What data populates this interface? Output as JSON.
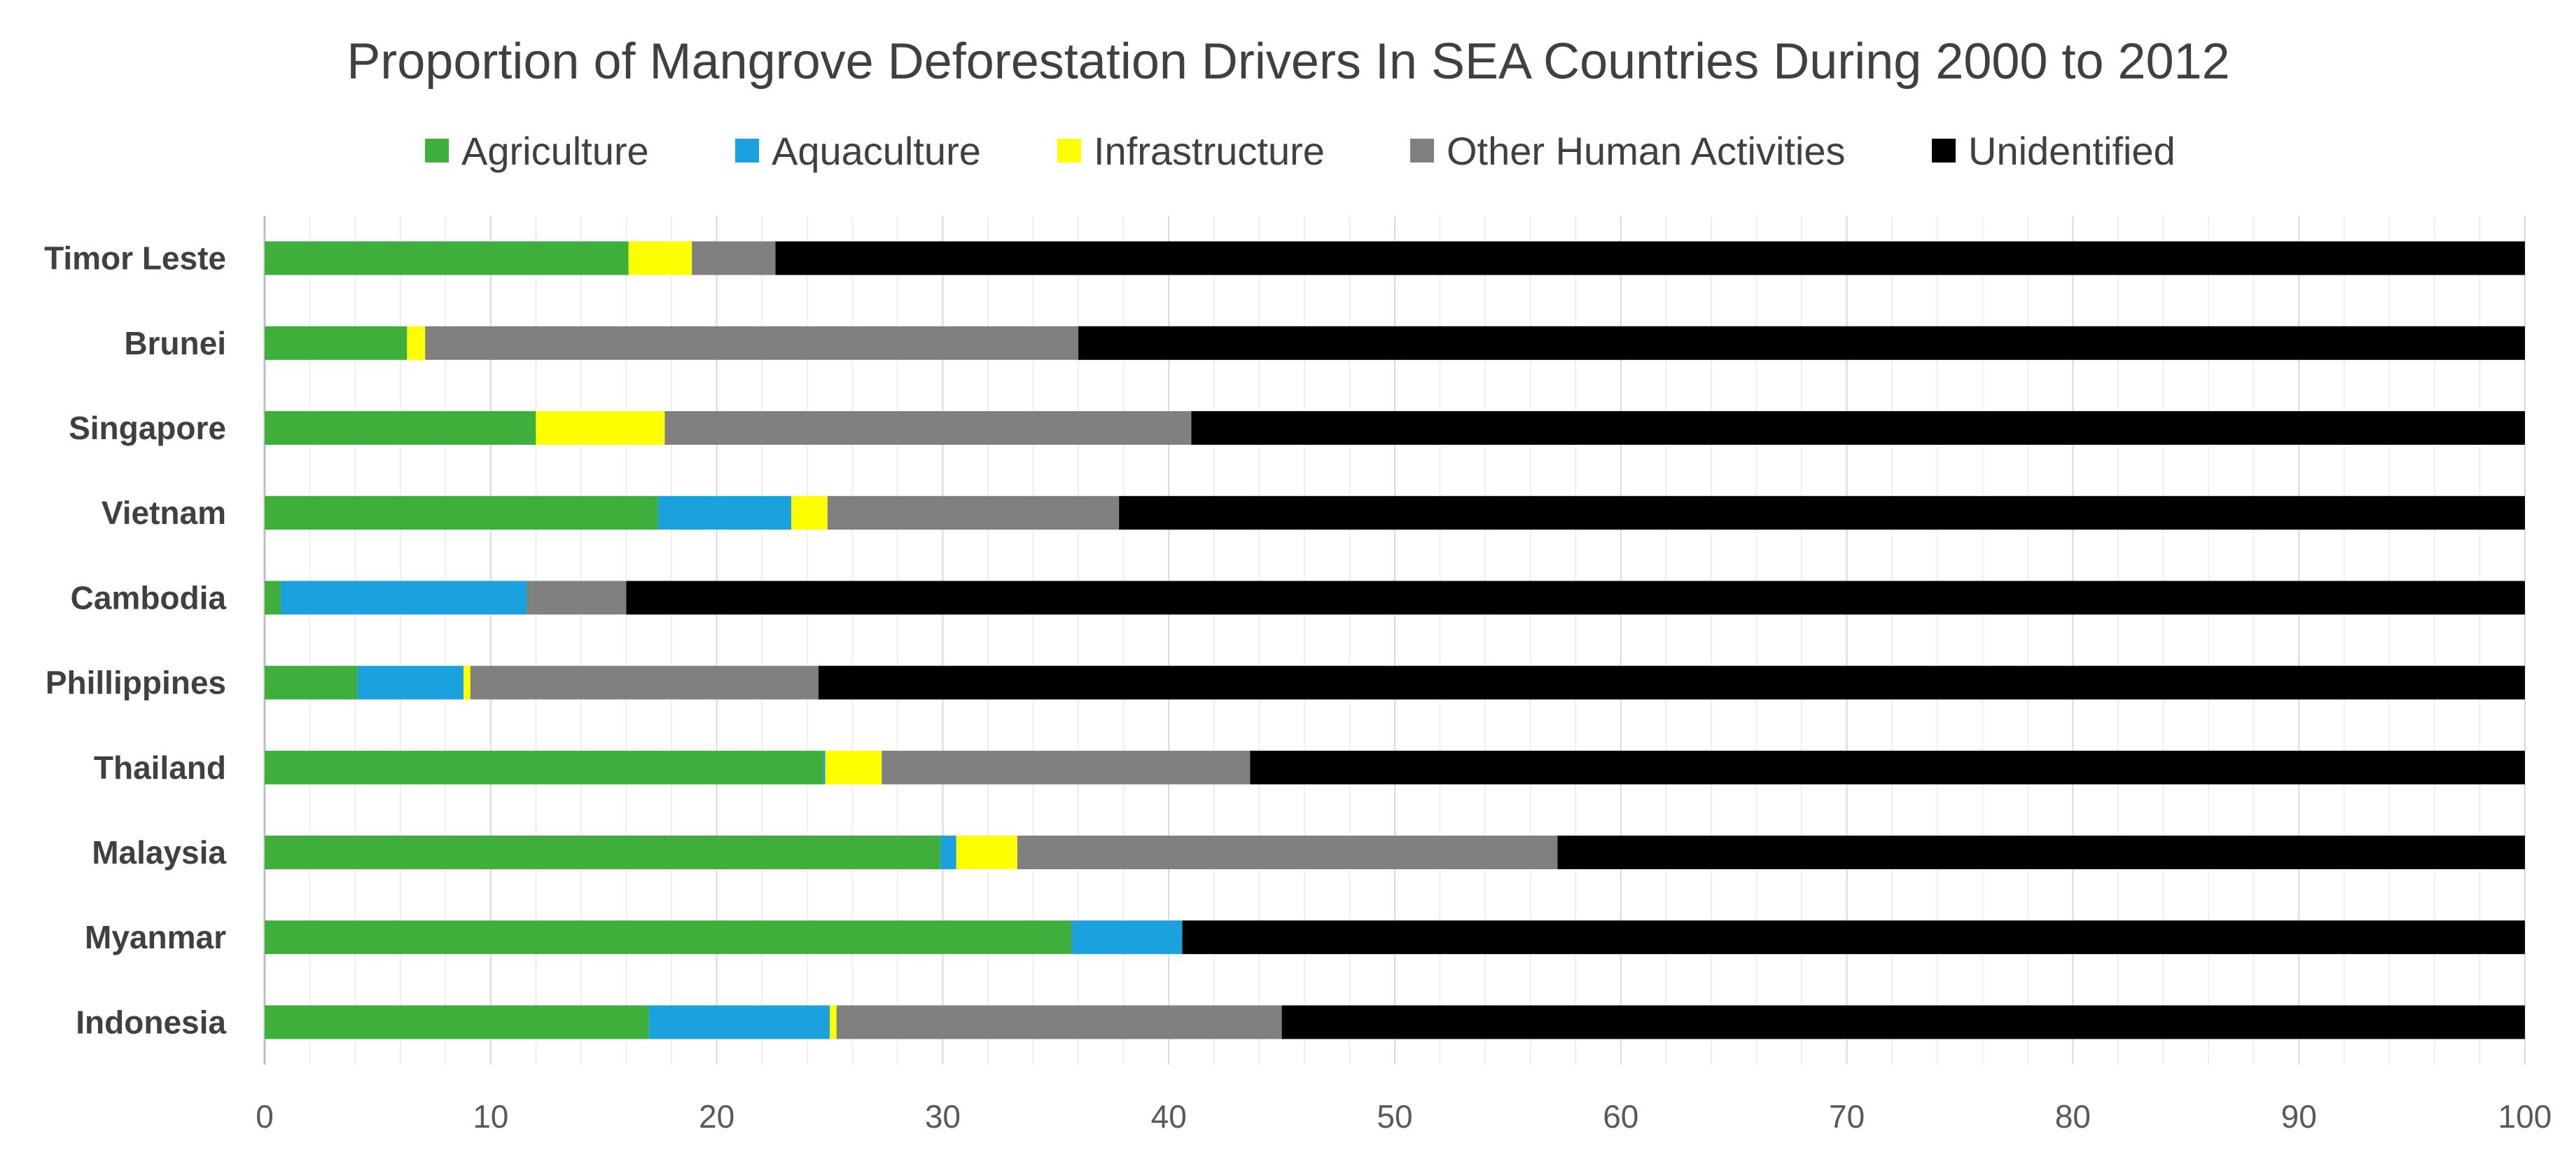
{
  "chart_data": {
    "type": "bar",
    "orientation": "horizontal",
    "stacked": true,
    "title": "Proportion of Mangrove Deforestation Drivers In SEA Countries During 2000 to 2012",
    "xlabel": "",
    "ylabel": "",
    "xlim": [
      0,
      100
    ],
    "xticks": [
      "0",
      "10",
      "20",
      "30",
      "40",
      "50",
      "60",
      "70",
      "80",
      "90",
      "100"
    ],
    "grid": true,
    "legend_position": "top",
    "categories": [
      "Timor Leste",
      "Brunei",
      "Singapore",
      "Vietnam",
      "Cambodia",
      "Phillippines",
      "Thailand",
      "Malaysia",
      "Myanmar",
      "Indonesia"
    ],
    "series": [
      {
        "name": "Agriculture",
        "color": "#3daf3a",
        "values": [
          16.1,
          6.3,
          12.0,
          17.4,
          0.7,
          4.1,
          24.7,
          29.9,
          35.7,
          17.0
        ]
      },
      {
        "name": "Aquaculture",
        "color": "#1ba1dd",
        "values": [
          0.0,
          0.0,
          0.0,
          5.9,
          10.9,
          4.7,
          0.1,
          0.7,
          4.9,
          8.0
        ]
      },
      {
        "name": "Infrastructure",
        "color": "#ffff00",
        "values": [
          2.8,
          0.8,
          5.7,
          1.6,
          0.0,
          0.3,
          2.5,
          2.7,
          0.0,
          0.3
        ]
      },
      {
        "name": "Other Human Activities",
        "color": "#808080",
        "values": [
          3.7,
          28.9,
          23.3,
          12.9,
          4.4,
          15.4,
          16.3,
          23.9,
          0.0,
          19.7
        ]
      },
      {
        "name": "Unidentified",
        "color": "#000000",
        "values": [
          77.4,
          64.0,
          59.0,
          62.2,
          84.0,
          75.5,
          56.4,
          42.8,
          59.4,
          55.0
        ]
      }
    ]
  }
}
